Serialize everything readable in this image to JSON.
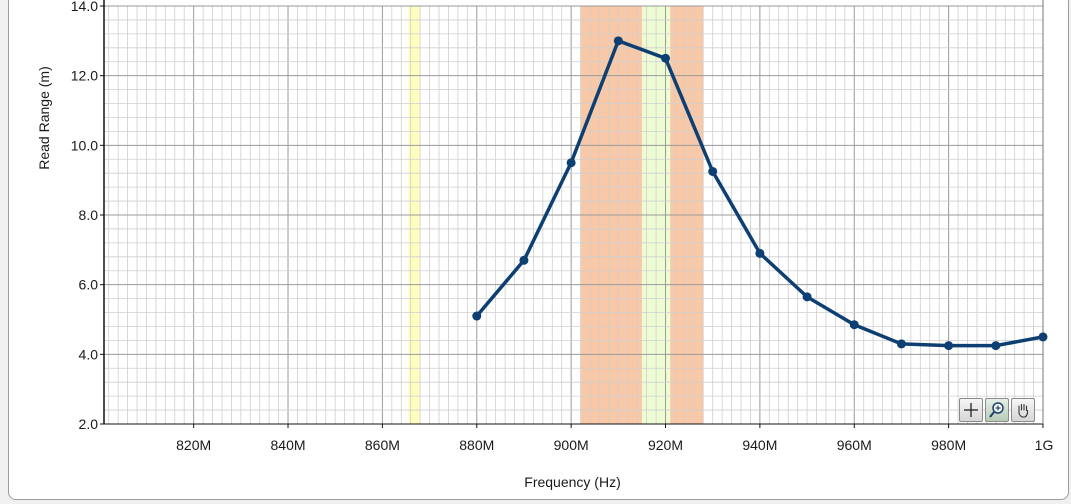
{
  "chart_data": {
    "type": "line",
    "xlabel": "Frequency (Hz)",
    "ylabel": "Read Range (m)",
    "xlim": [
      801000000,
      1000000000
    ],
    "ylim": [
      2.0,
      14.0
    ],
    "x_ticks": [
      {
        "value": 820000000,
        "label": "820M"
      },
      {
        "value": 840000000,
        "label": "840M"
      },
      {
        "value": 860000000,
        "label": "860M"
      },
      {
        "value": 880000000,
        "label": "880M"
      },
      {
        "value": 900000000,
        "label": "900M"
      },
      {
        "value": 920000000,
        "label": "920M"
      },
      {
        "value": 940000000,
        "label": "940M"
      },
      {
        "value": 960000000,
        "label": "960M"
      },
      {
        "value": 980000000,
        "label": "980M"
      },
      {
        "value": 1000000000,
        "label": "1G"
      }
    ],
    "y_ticks": [
      {
        "value": 2.0,
        "label": "2.0"
      },
      {
        "value": 4.0,
        "label": "4.0"
      },
      {
        "value": 6.0,
        "label": "6.0"
      },
      {
        "value": 8.0,
        "label": "8.0"
      },
      {
        "value": 10.0,
        "label": "10.0"
      },
      {
        "value": 12.0,
        "label": "12.0"
      },
      {
        "value": 14.0,
        "label": "14.0"
      }
    ],
    "grid": true,
    "bands": [
      {
        "x0": 865500000,
        "x1": 868000000,
        "color": "#fefec0"
      },
      {
        "x0": 902000000,
        "x1": 928000000,
        "color": "#f9c8a6"
      },
      {
        "x0": 915000000,
        "x1": 921000000,
        "color": "#eefcd4"
      }
    ],
    "series": [
      {
        "color": "#0d3f73",
        "points": [
          {
            "x": 880000000,
            "y": 5.1
          },
          {
            "x": 890000000,
            "y": 6.7
          },
          {
            "x": 900000000,
            "y": 9.5
          },
          {
            "x": 910000000,
            "y": 13.0
          },
          {
            "x": 920000000,
            "y": 12.5
          },
          {
            "x": 930000000,
            "y": 9.25
          },
          {
            "x": 940000000,
            "y": 6.9
          },
          {
            "x": 950000000,
            "y": 5.65
          },
          {
            "x": 960000000,
            "y": 4.85
          },
          {
            "x": 970000000,
            "y": 4.3
          },
          {
            "x": 980000000,
            "y": 4.25
          },
          {
            "x": 990000000,
            "y": 4.25
          },
          {
            "x": 1000000000,
            "y": 4.5
          }
        ]
      }
    ]
  },
  "graph_palette": {
    "cursor_icon": "crosshair-move-icon",
    "zoom_icon": "zoom-magnifier-icon",
    "pan_icon": "pan-hand-icon"
  }
}
